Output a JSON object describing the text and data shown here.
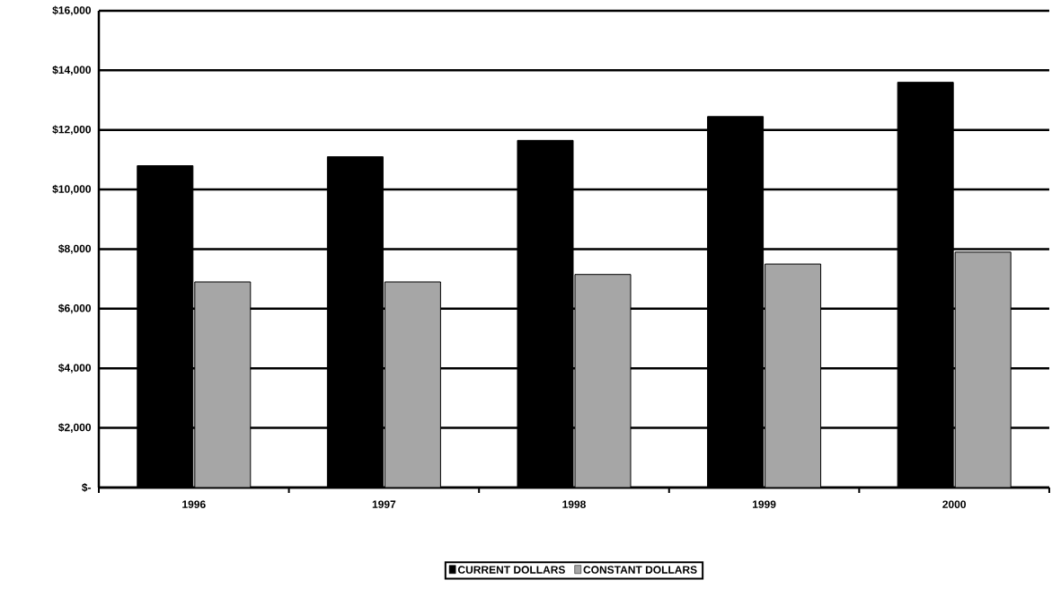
{
  "chart_data": {
    "type": "bar",
    "categories": [
      "1996",
      "1997",
      "1998",
      "1999",
      "2000"
    ],
    "series": [
      {
        "name": "CURRENT DOLLARS",
        "color": "#000000",
        "values": [
          10800,
          11100,
          11650,
          12450,
          13600
        ]
      },
      {
        "name": "CONSTANT DOLLARS",
        "color": "#a6a6a6",
        "values": [
          6900,
          6900,
          7150,
          7500,
          7900
        ]
      }
    ],
    "ylim": [
      0,
      16000
    ],
    "yticks": [
      {
        "value": 0,
        "label": "$-"
      },
      {
        "value": 2000,
        "label": "$2,000"
      },
      {
        "value": 4000,
        "label": "$4,000"
      },
      {
        "value": 6000,
        "label": "$6,000"
      },
      {
        "value": 8000,
        "label": "$8,000"
      },
      {
        "value": 10000,
        "label": "$10,000"
      },
      {
        "value": 12000,
        "label": "$12,000"
      },
      {
        "value": 14000,
        "label": "$14,000"
      },
      {
        "value": 16000,
        "label": "$16,000"
      }
    ],
    "grid": "y",
    "legend": "bottom"
  }
}
